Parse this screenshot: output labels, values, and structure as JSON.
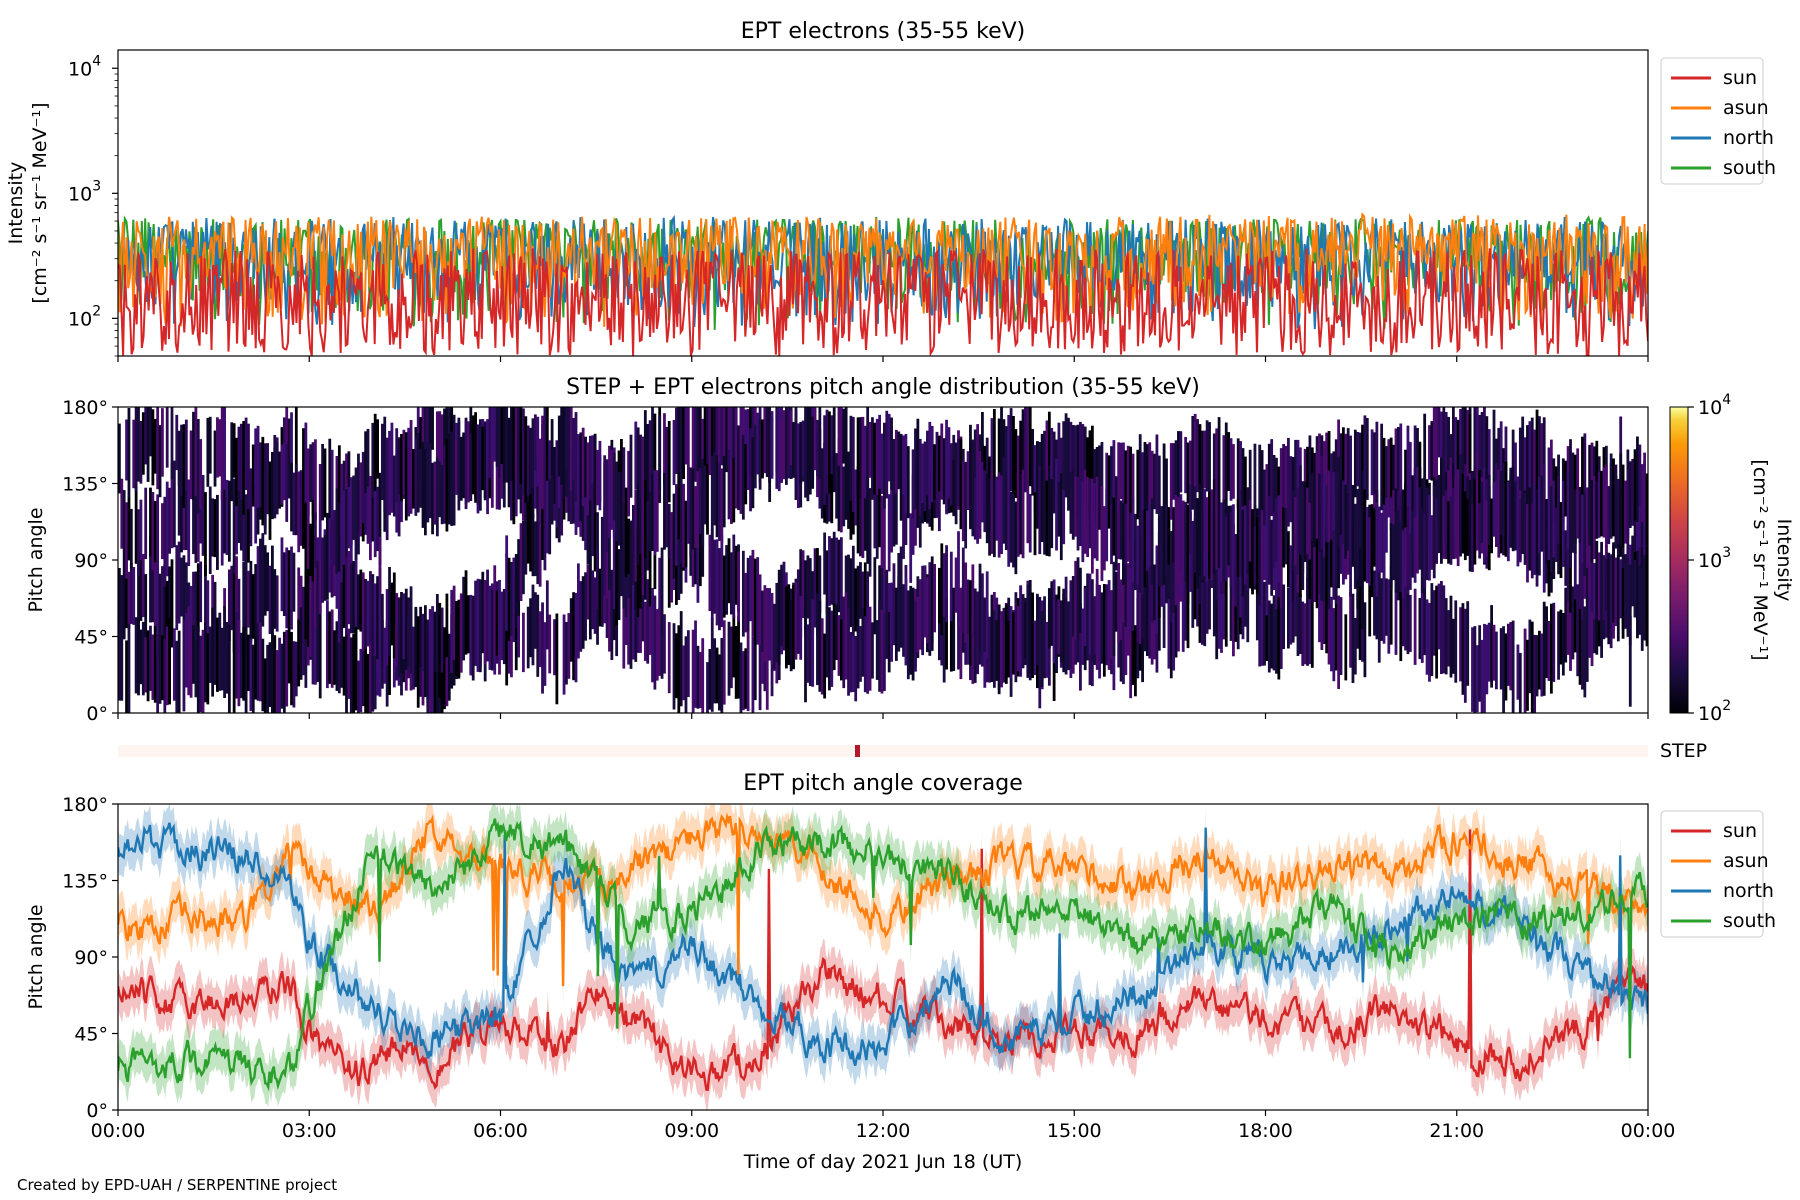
{
  "chart_data": [
    {
      "type": "line",
      "title": "EPT electrons (35-55 keV)",
      "ylabel_line1": "Intensity",
      "ylabel_line2": "[cm⁻² s⁻¹ sr⁻¹ MeV⁻¹]",
      "yscale": "log",
      "ylim": [
        50,
        14000
      ],
      "yticks": [
        {
          "value": 100,
          "base": "10",
          "exp": "2"
        },
        {
          "value": 1000,
          "base": "10",
          "exp": "3"
        },
        {
          "value": 10000,
          "base": "10",
          "exp": "4"
        }
      ],
      "xlim_hours": [
        0,
        24
      ],
      "legend_position": "upper-right-outside",
      "series": [
        {
          "name": "sun",
          "color": "#d62728",
          "typical_range": [
            50,
            350
          ]
        },
        {
          "name": "asun",
          "color": "#ff7f0e",
          "typical_range": [
            80,
            650
          ]
        },
        {
          "name": "north",
          "color": "#1f77b4",
          "typical_range": [
            80,
            620
          ]
        },
        {
          "name": "south",
          "color": "#2ca02c",
          "typical_range": [
            80,
            620
          ]
        }
      ]
    },
    {
      "type": "heatmap",
      "title": "STEP + EPT electrons pitch angle distribution (35-55 keV)",
      "ylabel": "Pitch angle",
      "ylim": [
        0,
        180
      ],
      "yticks": [
        "0°",
        "45°",
        "90°",
        "135°",
        "180°"
      ],
      "colorbar": {
        "label_line1": "Intensity",
        "label_line2": "[cm⁻² s⁻¹ sr⁻¹ MeV⁻¹]",
        "scale": "log",
        "range": [
          100,
          10000
        ],
        "ticks": [
          {
            "base": "10",
            "exp": "2"
          },
          {
            "base": "10",
            "exp": "3"
          },
          {
            "base": "10",
            "exp": "4"
          }
        ],
        "colormap": "inferno"
      },
      "step_strip": {
        "label": "STEP",
        "marker_hour": 11.6
      }
    },
    {
      "type": "line",
      "title": "EPT pitch angle coverage",
      "ylabel": "Pitch angle",
      "xlabel": "Time of day 2021 Jun 18 (UT)",
      "ylim": [
        0,
        180
      ],
      "yticks": [
        "0°",
        "45°",
        "90°",
        "135°",
        "180°"
      ],
      "xticks": [
        "00:00",
        "03:00",
        "06:00",
        "09:00",
        "12:00",
        "15:00",
        "18:00",
        "21:00",
        "00:00"
      ],
      "legend_position": "upper-right-outside",
      "series": [
        {
          "name": "sun",
          "color": "#d62728",
          "knots": [
            [
              0,
              70
            ],
            [
              1,
              62
            ],
            [
              2,
              65
            ],
            [
              2.7,
              75
            ],
            [
              3,
              45
            ],
            [
              3.7,
              20
            ],
            [
              4.5,
              40
            ],
            [
              5,
              30
            ],
            [
              6,
              48
            ],
            [
              7,
              35
            ],
            [
              7.5,
              70
            ],
            [
              8,
              55
            ],
            [
              8.5,
              40
            ],
            [
              9,
              20
            ],
            [
              10,
              30
            ],
            [
              11,
              80
            ],
            [
              12,
              65
            ],
            [
              13,
              50
            ],
            [
              14,
              40
            ],
            [
              15,
              50
            ],
            [
              16,
              45
            ],
            [
              17,
              60
            ],
            [
              18,
              55
            ],
            [
              19,
              45
            ],
            [
              20,
              60
            ],
            [
              21,
              40
            ],
            [
              22,
              30
            ],
            [
              23,
              50
            ],
            [
              23.7,
              80
            ],
            [
              24,
              70
            ]
          ]
        },
        {
          "name": "asun",
          "color": "#ff7f0e",
          "knots": [
            [
              0,
              105
            ],
            [
              1,
              112
            ],
            [
              2,
              110
            ],
            [
              2.7,
              150
            ],
            [
              3,
              140
            ],
            [
              4,
              120
            ],
            [
              5,
              165
            ],
            [
              6,
              145
            ],
            [
              7,
              130
            ],
            [
              8,
              140
            ],
            [
              9,
              160
            ],
            [
              10,
              165
            ],
            [
              11,
              145
            ],
            [
              12,
              110
            ],
            [
              13,
              135
            ],
            [
              14,
              145
            ],
            [
              15,
              140
            ],
            [
              16,
              130
            ],
            [
              17,
              150
            ],
            [
              18,
              125
            ],
            [
              19,
              145
            ],
            [
              20,
              140
            ],
            [
              21,
              160
            ],
            [
              22,
              145
            ],
            [
              23,
              130
            ],
            [
              24,
              120
            ]
          ]
        },
        {
          "name": "north",
          "color": "#1f77b4",
          "knots": [
            [
              0,
              160
            ],
            [
              1,
              155
            ],
            [
              2,
              150
            ],
            [
              2.7,
              140
            ],
            [
              3,
              100
            ],
            [
              4,
              60
            ],
            [
              5,
              40
            ],
            [
              6,
              55
            ],
            [
              7,
              150
            ],
            [
              7.5,
              100
            ],
            [
              8,
              75
            ],
            [
              9,
              95
            ],
            [
              10,
              65
            ],
            [
              11,
              40
            ],
            [
              12,
              35
            ],
            [
              13,
              80
            ],
            [
              14,
              40
            ],
            [
              15,
              55
            ],
            [
              16,
              70
            ],
            [
              17,
              100
            ],
            [
              18,
              85
            ],
            [
              19,
              95
            ],
            [
              20,
              110
            ],
            [
              21,
              125
            ],
            [
              22,
              110
            ],
            [
              23,
              80
            ],
            [
              24,
              60
            ]
          ]
        },
        {
          "name": "south",
          "color": "#2ca02c",
          "knots": [
            [
              0,
              25
            ],
            [
              1,
              30
            ],
            [
              2,
              25
            ],
            [
              2.7,
              20
            ],
            [
              3,
              60
            ],
            [
              4,
              150
            ],
            [
              5,
              130
            ],
            [
              6,
              165
            ],
            [
              7,
              155
            ],
            [
              8,
              110
            ],
            [
              9,
              115
            ],
            [
              10,
              150
            ],
            [
              11,
              160
            ],
            [
              12,
              150
            ],
            [
              13,
              140
            ],
            [
              14,
              115
            ],
            [
              15,
              120
            ],
            [
              16,
              100
            ],
            [
              17,
              110
            ],
            [
              18,
              95
            ],
            [
              19,
              120
            ],
            [
              20,
              90
            ],
            [
              21,
              115
            ],
            [
              22,
              110
            ],
            [
              23,
              115
            ],
            [
              24,
              130
            ]
          ]
        }
      ]
    }
  ],
  "credit": "Created by EPD-UAH / SERPENTINE project"
}
